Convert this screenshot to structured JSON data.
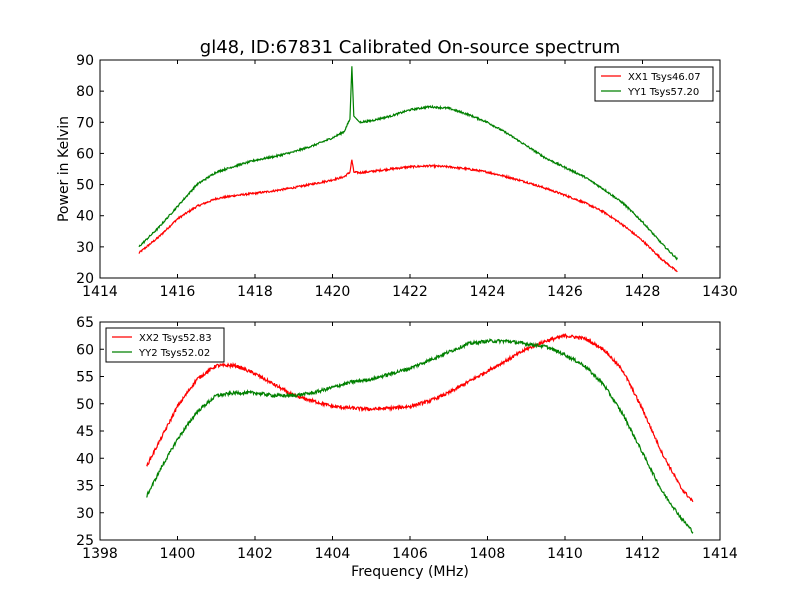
{
  "figure": {
    "title": "gl48, ID:67831 Calibrated On-source spectrum"
  },
  "chart_data": [
    {
      "type": "line",
      "title": "gl48, ID:67831 Calibrated On-source spectrum",
      "xlabel": "",
      "ylabel": "Power in Kelvin",
      "xlim": [
        1414,
        1430
      ],
      "ylim": [
        20,
        90
      ],
      "xticks": [
        "1414",
        "1416",
        "1418",
        "1420",
        "1422",
        "1424",
        "1426",
        "1428",
        "1430"
      ],
      "yticks": [
        "20",
        "30",
        "40",
        "50",
        "60",
        "70",
        "80",
        "90"
      ],
      "grid": false,
      "legend": "top-right",
      "series": [
        {
          "name": "XX1 Tsys46.07",
          "color": "#ff0000",
          "x": [
            1415.0,
            1415.5,
            1416.0,
            1416.5,
            1417.0,
            1417.5,
            1418.0,
            1418.5,
            1419.0,
            1419.5,
            1420.0,
            1420.3,
            1420.45,
            1420.5,
            1420.55,
            1420.7,
            1421.0,
            1421.5,
            1422.0,
            1422.5,
            1423.0,
            1423.5,
            1424.0,
            1424.5,
            1425.0,
            1425.5,
            1426.0,
            1426.5,
            1427.0,
            1427.5,
            1428.0,
            1428.5,
            1428.9
          ],
          "y": [
            28,
            33,
            39,
            43,
            45.5,
            46.5,
            47.2,
            48,
            49,
            50.2,
            51.5,
            52.5,
            54,
            58,
            54,
            53.8,
            54.2,
            55,
            55.7,
            56,
            55.7,
            55,
            54,
            52.5,
            50.8,
            48.8,
            46.6,
            44.2,
            41.2,
            37,
            32,
            26,
            22
          ]
        },
        {
          "name": "YY1 Tsys57.20",
          "color": "#008000",
          "x": [
            1415.0,
            1415.5,
            1416.0,
            1416.5,
            1417.0,
            1417.5,
            1418.0,
            1418.5,
            1419.0,
            1419.5,
            1420.0,
            1420.3,
            1420.45,
            1420.5,
            1420.55,
            1420.7,
            1421.0,
            1421.5,
            1422.0,
            1422.5,
            1423.0,
            1423.5,
            1424.0,
            1424.5,
            1425.0,
            1425.5,
            1426.0,
            1426.5,
            1427.0,
            1427.5,
            1428.0,
            1428.5,
            1428.9
          ],
          "y": [
            30,
            36,
            43,
            50,
            54,
            56,
            57.8,
            59,
            60.5,
            62.5,
            65,
            67,
            71,
            88,
            72,
            70,
            70.5,
            72,
            74,
            75,
            74.5,
            72.5,
            70,
            66.5,
            62.5,
            58.5,
            55.5,
            52.5,
            48.5,
            44,
            38,
            31,
            26
          ]
        }
      ]
    },
    {
      "type": "line",
      "title": "",
      "xlabel": "Frequency (MHz)",
      "ylabel": "",
      "xlim": [
        1398,
        1414
      ],
      "ylim": [
        25,
        65
      ],
      "xticks": [
        "1398",
        "1400",
        "1402",
        "1404",
        "1406",
        "1408",
        "1410",
        "1412",
        "1414"
      ],
      "yticks": [
        "25",
        "30",
        "35",
        "40",
        "45",
        "50",
        "55",
        "60",
        "65"
      ],
      "grid": false,
      "legend": "top-left",
      "series": [
        {
          "name": "XX2 Tsys52.83",
          "color": "#ff0000",
          "x": [
            1399.2,
            1399.6,
            1400.0,
            1400.5,
            1401.0,
            1401.5,
            1402.0,
            1402.5,
            1403.0,
            1403.5,
            1404.0,
            1404.5,
            1405.0,
            1405.5,
            1406.0,
            1406.5,
            1407.0,
            1407.5,
            1408.0,
            1408.5,
            1409.0,
            1409.5,
            1410.0,
            1410.5,
            1411.0,
            1411.5,
            1412.0,
            1412.5,
            1413.0,
            1413.3
          ],
          "y": [
            38.5,
            44,
            49.5,
            54.5,
            57,
            57,
            55.5,
            53.5,
            51.5,
            50.5,
            49.5,
            49.2,
            49,
            49.2,
            49.5,
            50.5,
            52,
            54,
            56,
            58,
            60,
            61.5,
            62.5,
            62,
            60,
            56,
            49,
            41,
            34.5,
            32
          ]
        },
        {
          "name": "YY2 Tsys52.02",
          "color": "#008000",
          "x": [
            1399.2,
            1399.6,
            1400.0,
            1400.5,
            1401.0,
            1401.5,
            1402.0,
            1402.5,
            1403.0,
            1403.5,
            1404.0,
            1404.5,
            1405.0,
            1405.5,
            1406.0,
            1406.5,
            1407.0,
            1407.5,
            1408.0,
            1408.5,
            1409.0,
            1409.5,
            1410.0,
            1410.5,
            1411.0,
            1411.5,
            1412.0,
            1412.5,
            1413.0,
            1413.3
          ],
          "y": [
            33,
            38.5,
            43.5,
            48.5,
            51.5,
            52,
            52,
            51.5,
            51.5,
            52,
            53,
            54,
            54.5,
            55.5,
            56.5,
            58,
            59.5,
            61,
            61.5,
            61.5,
            61,
            60.5,
            59,
            57,
            53.5,
            48,
            41,
            34,
            29,
            26.5
          ]
        }
      ]
    }
  ]
}
